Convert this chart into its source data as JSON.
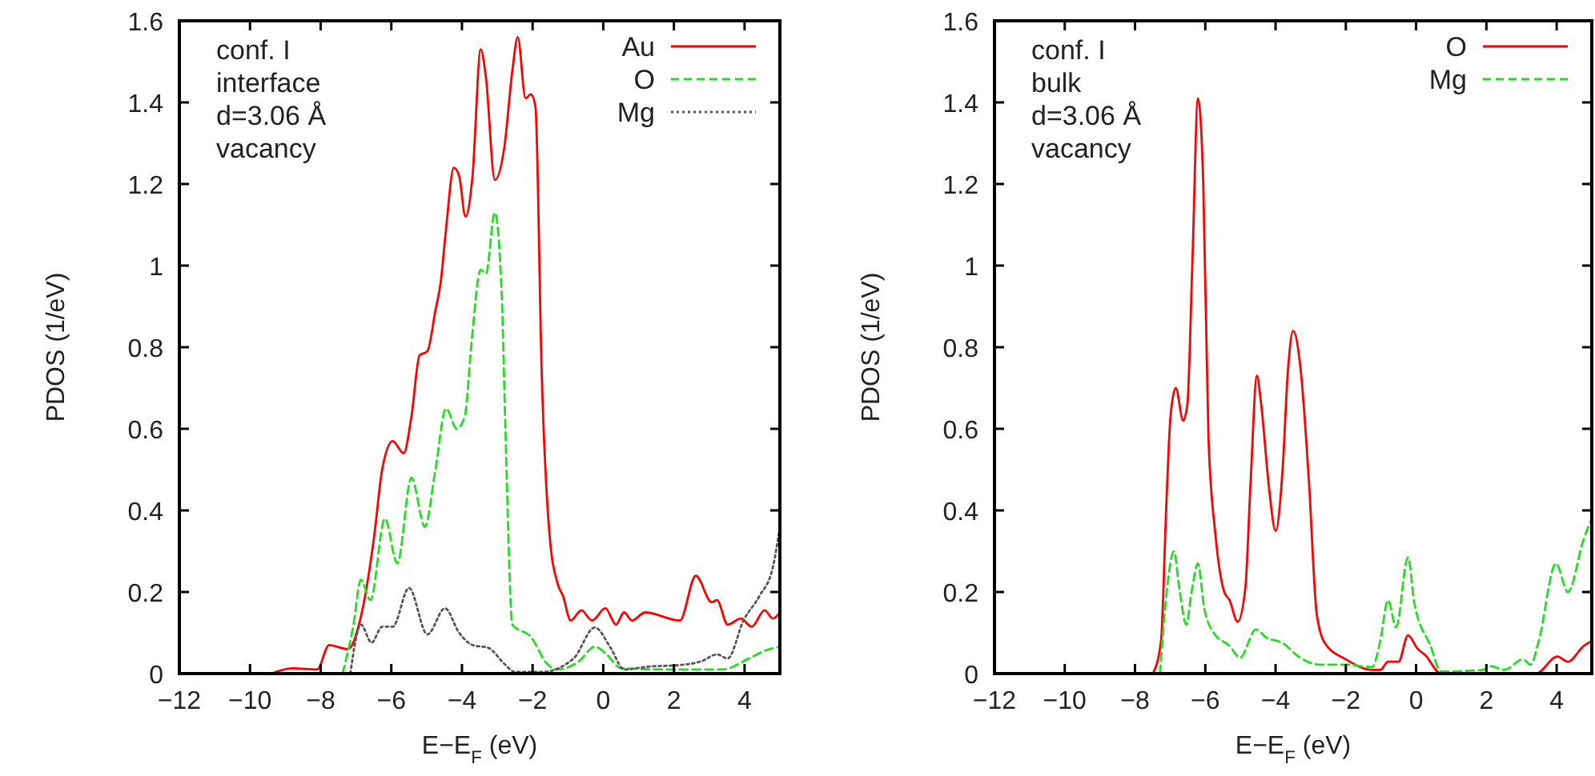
{
  "chart_data": [
    {
      "type": "line",
      "xlabel": "E−E$_{F}$ (eV)",
      "ylabel": "PDOS (1/eV)",
      "annotations": [
        "conf. I",
        "interface",
        "d=3.06 Å",
        "vacancy"
      ],
      "xlim": [
        -12,
        5
      ],
      "ylim": [
        0,
        1.6
      ],
      "xticks": [
        {
          "value": -12,
          "label": "−12"
        },
        {
          "value": -10,
          "label": "−10"
        },
        {
          "value": -8,
          "label": "−8"
        },
        {
          "value": -6,
          "label": "−6"
        },
        {
          "value": -4,
          "label": "−4"
        },
        {
          "value": -2,
          "label": "−2"
        },
        0,
        2,
        4
      ],
      "yticks": [
        0,
        0.2,
        0.4,
        0.6,
        0.8,
        1,
        1.2,
        1.4,
        1.6
      ],
      "grid": false,
      "legend": "top right",
      "series": [
        {
          "name": "Au",
          "color": "#ff0000",
          "line_style": "solid",
          "x": [
            -9.4,
            -8.8,
            -8.1,
            -7.76,
            -7.23,
            -6.86,
            -6.48,
            -6.26,
            -5.96,
            -5.65,
            -5.43,
            -5.2,
            -4.98,
            -4.75,
            -4.6,
            -4.45,
            -4.23,
            -4.08,
            -3.9,
            -3.7,
            -3.47,
            -3.32,
            -3.07,
            -2.8,
            -2.57,
            -2.42,
            -2.2,
            -2.05,
            -1.92,
            -1.74,
            -1.52,
            -1.29,
            -1.14,
            -0.92,
            -0.62,
            -0.32,
            0.06,
            0.36,
            0.59,
            0.81,
            1.19,
            2.17,
            2.62,
            3.07,
            3.22,
            3.52,
            3.9,
            4.2,
            4.57,
            4.8,
            5
          ],
          "values": [
            0,
            0.013,
            0.01,
            0.07,
            0.06,
            0.14,
            0.34,
            0.5,
            0.57,
            0.54,
            0.63,
            0.78,
            0.79,
            0.89,
            0.96,
            1.09,
            1.24,
            1.22,
            1.12,
            1.22,
            1.53,
            1.46,
            1.21,
            1.29,
            1.48,
            1.56,
            1.41,
            1.42,
            1.39,
            0.73,
            0.34,
            0.22,
            0.19,
            0.13,
            0.155,
            0.13,
            0.16,
            0.12,
            0.15,
            0.13,
            0.15,
            0.13,
            0.24,
            0.175,
            0.18,
            0.12,
            0.135,
            0.115,
            0.155,
            0.135,
            0.15
          ]
        },
        {
          "name": "O",
          "color": "#22dd22",
          "line_style": "dashed",
          "x": [
            -7.38,
            -7.08,
            -6.86,
            -6.59,
            -6.18,
            -5.83,
            -5.43,
            -5.05,
            -4.75,
            -4.45,
            -4.15,
            -3.92,
            -3.73,
            -3.47,
            -3.32,
            -3.07,
            -2.87,
            -2.77,
            -2.57,
            -2.05,
            -1.59,
            -1.29,
            -0.69,
            -0.24,
            0.06,
            0.51,
            2,
            3.37,
            4.12,
            4.57,
            5
          ],
          "values": [
            0,
            0.115,
            0.23,
            0.18,
            0.38,
            0.27,
            0.48,
            0.36,
            0.5,
            0.65,
            0.6,
            0.63,
            0.81,
            0.99,
            0.98,
            1.13,
            0.92,
            0.6,
            0.12,
            0.09,
            0.024,
            0.01,
            0.03,
            0.066,
            0.05,
            0.013,
            0.01,
            0.01,
            0.037,
            0.056,
            0.066
          ]
        },
        {
          "name": "Mg",
          "color": "#555555",
          "line_style": "dotted",
          "x": [
            -7.16,
            -6.86,
            -6.56,
            -6.26,
            -5.96,
            -5.5,
            -4.98,
            -4.48,
            -4.08,
            -3.7,
            -3.25,
            -2.8,
            -2.5,
            -1.74,
            -0.84,
            -0.24,
            0.21,
            0.59,
            1.26,
            2.17,
            2.77,
            3.22,
            3.52,
            3.97,
            4.42,
            4.8,
            5
          ],
          "values": [
            0,
            0.12,
            0.076,
            0.115,
            0.115,
            0.21,
            0.096,
            0.16,
            0.1,
            0.07,
            0.063,
            0.024,
            0.004,
            0.004,
            0.037,
            0.113,
            0.063,
            0.01,
            0.017,
            0.021,
            0.03,
            0.047,
            0.037,
            0.13,
            0.19,
            0.26,
            0.36
          ]
        }
      ]
    },
    {
      "type": "line",
      "xlabel": "E−E$_{F}$ (eV)",
      "ylabel": "PDOS (1/eV)",
      "annotations": [
        "conf. I",
        "bulk",
        "d=3.06 Å",
        "vacancy"
      ],
      "xlim": [
        -12,
        5
      ],
      "ylim": [
        0,
        1.6
      ],
      "xticks": [
        {
          "value": -12,
          "label": "−12"
        },
        {
          "value": -10,
          "label": "−10"
        },
        {
          "value": -8,
          "label": "−8"
        },
        {
          "value": -6,
          "label": "−6"
        },
        {
          "value": -4,
          "label": "−4"
        },
        {
          "value": -2,
          "label": "−2"
        },
        0,
        2,
        4
      ],
      "yticks": [
        0,
        0.2,
        0.4,
        0.6,
        0.8,
        1,
        1.2,
        1.4,
        1.6
      ],
      "grid": false,
      "legend": "top right",
      "series": [
        {
          "name": "O",
          "color": "#ff0000",
          "line_style": "solid",
          "x": [
            -7.49,
            -7.26,
            -7.11,
            -6.99,
            -6.84,
            -6.63,
            -6.51,
            -6.36,
            -6.21,
            -6.06,
            -5.91,
            -5.71,
            -5.46,
            -5.31,
            -5.08,
            -4.86,
            -4.71,
            -4.53,
            -4.41,
            -4.18,
            -4,
            -3.8,
            -3.65,
            -3.5,
            -3.28,
            -3.05,
            -2.83,
            -2.6,
            -2,
            -1.25,
            -1.02,
            -0.8,
            -0.5,
            -0.23,
            0.03,
            0.26,
            0.71,
            3.41,
            4.02,
            4.32,
            4.77,
            5
          ],
          "values": [
            0,
            0.08,
            0.41,
            0.63,
            0.7,
            0.62,
            0.66,
            1.03,
            1.41,
            1.21,
            0.58,
            0.34,
            0.2,
            0.18,
            0.127,
            0.21,
            0.47,
            0.73,
            0.66,
            0.45,
            0.35,
            0.5,
            0.74,
            0.84,
            0.74,
            0.47,
            0.147,
            0.075,
            0.035,
            0.009,
            0.009,
            0.029,
            0.029,
            0.094,
            0.062,
            0.045,
            0,
            0,
            0.042,
            0.029,
            0.068,
            0.08
          ]
        },
        {
          "name": "Mg",
          "color": "#22dd22",
          "line_style": "dashed",
          "x": [
            -7.29,
            -7.11,
            -6.89,
            -6.74,
            -6.54,
            -6.39,
            -6.21,
            -6.03,
            -5.76,
            -5.31,
            -5.01,
            -4.56,
            -4.26,
            -3.8,
            -3.35,
            -2.75,
            -2,
            -1.25,
            -1.02,
            -0.8,
            -0.57,
            -0.23,
            -0.05,
            0.41,
            0.71,
            1.9,
            2.14,
            2.51,
            3.04,
            3.26,
            3.49,
            3.98,
            4.32,
            4.77,
            5
          ],
          "values": [
            0,
            0.19,
            0.3,
            0.21,
            0.12,
            0.2,
            0.27,
            0.16,
            0.1,
            0.068,
            0.039,
            0.108,
            0.088,
            0.075,
            0.042,
            0.022,
            0.022,
            0.016,
            0.08,
            0.18,
            0.114,
            0.285,
            0.173,
            0.068,
            0.005,
            0.009,
            0.018,
            0.009,
            0.035,
            0.022,
            0.08,
            0.27,
            0.2,
            0.33,
            0.38
          ]
        }
      ]
    }
  ]
}
